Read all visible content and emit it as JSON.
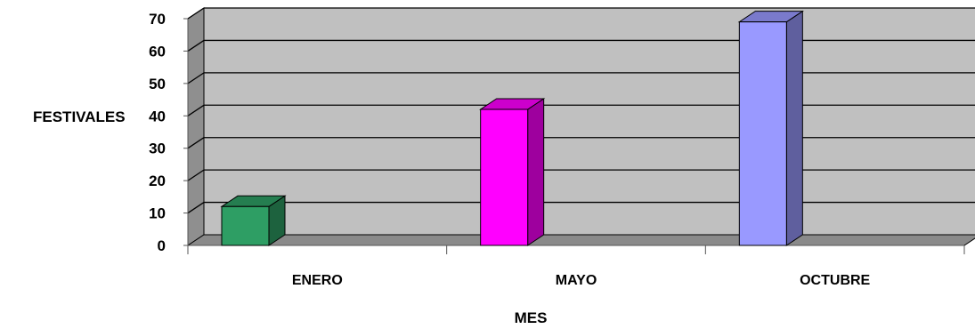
{
  "chart_data": {
    "type": "bar",
    "style": "3d-column",
    "categories": [
      "ENERO",
      "MAYO",
      "OCTUBRE"
    ],
    "values": [
      12,
      42,
      69
    ],
    "colors": [
      "#2E9E64",
      "#FF00FF",
      "#9999FF"
    ],
    "xlabel": "MES",
    "ylabel": "FESTIVALES",
    "ylim": [
      0,
      70
    ],
    "yticks": [
      "0",
      "10",
      "20",
      "30",
      "40",
      "50",
      "60",
      "70"
    ],
    "grid": true,
    "plot_background": "#C0C0C0",
    "legend": "none"
  }
}
